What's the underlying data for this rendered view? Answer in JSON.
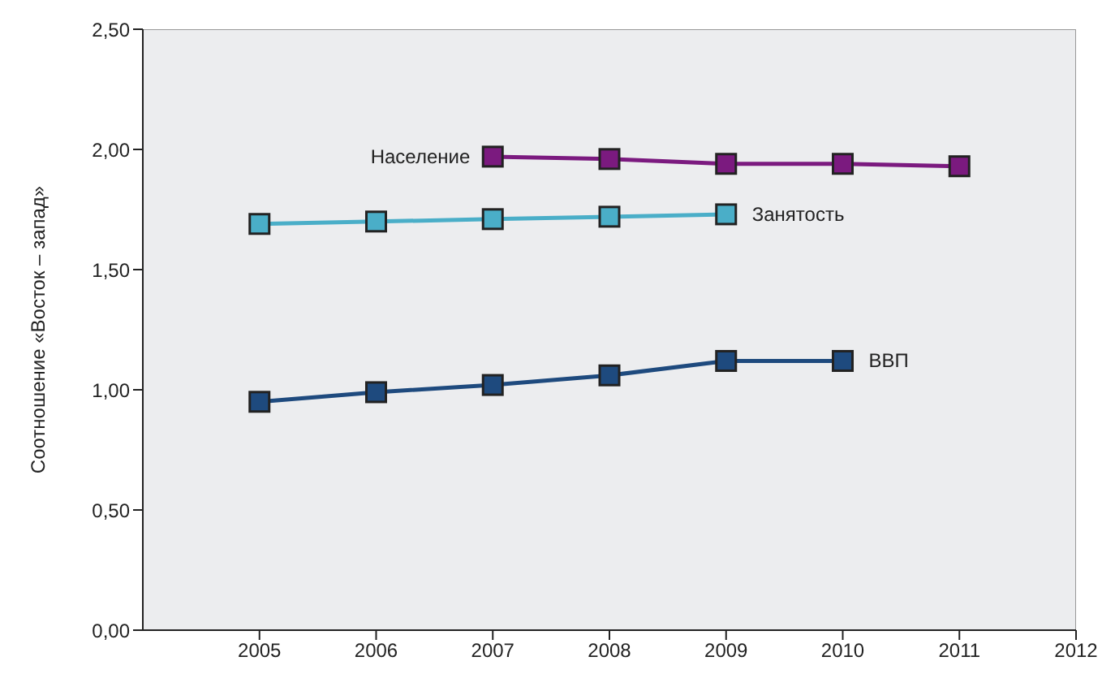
{
  "chart_data": {
    "type": "line",
    "ylabel": "Соотношение «Восток – запад»",
    "xlim": [
      2004,
      2012
    ],
    "xticks": [
      2005,
      2006,
      2007,
      2008,
      2009,
      2010,
      2011,
      2012
    ],
    "ylim": [
      0,
      2.5
    ],
    "yticks": [
      {
        "value": 0,
        "label": "0,00"
      },
      {
        "value": 0.5,
        "label": "0,50"
      },
      {
        "value": 1,
        "label": "1,00"
      },
      {
        "value": 1.5,
        "label": "1,50"
      },
      {
        "value": 2,
        "label": "2,00"
      },
      {
        "value": 2.5,
        "label": "2,50"
      }
    ],
    "grid": false,
    "legend": false,
    "marker": "square",
    "line_style": "solid",
    "series": [
      {
        "name": "Население",
        "color": "#7b1a7f",
        "x": [
          2007,
          2008,
          2009,
          2010,
          2011
        ],
        "values": [
          1.97,
          1.96,
          1.94,
          1.94,
          1.93
        ]
      },
      {
        "name": "Занятость",
        "color": "#4aaec8",
        "x": [
          2005,
          2006,
          2007,
          2008,
          2009
        ],
        "values": [
          1.69,
          1.7,
          1.71,
          1.72,
          1.73
        ]
      },
      {
        "name": "ВВП",
        "color": "#1e4a7e",
        "x": [
          2005,
          2006,
          2007,
          2008,
          2009,
          2010
        ],
        "values": [
          0.95,
          0.99,
          1.02,
          1.06,
          1.12,
          1.12
        ]
      }
    ]
  }
}
